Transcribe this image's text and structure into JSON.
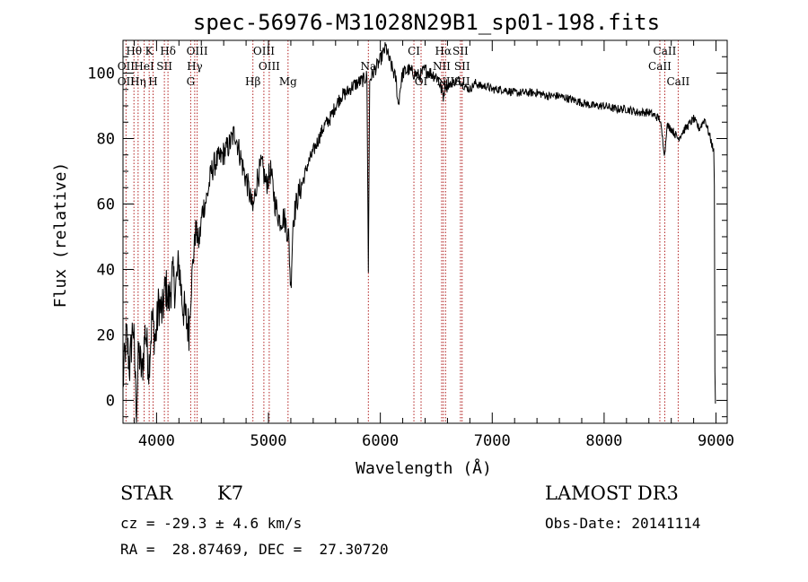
{
  "chart_data": {
    "type": "line",
    "title": "spec-56976-M31028N29B1_sp01-198.fits",
    "xlabel": "Wavelength (Å)",
    "ylabel": "Flux (relative)",
    "xlim": [
      3700,
      9100
    ],
    "ylim": [
      -7,
      110
    ],
    "x_ticks": [
      4000,
      5000,
      6000,
      7000,
      8000,
      9000
    ],
    "x_tick_labels": [
      "4000",
      "5000",
      "6000",
      "7000",
      "8000",
      "9000"
    ],
    "y_ticks": [
      0,
      20,
      40,
      60,
      80,
      100
    ],
    "y_tick_labels": [
      "0",
      "20",
      "40",
      "60",
      "80",
      "100"
    ],
    "spectrum_points": [
      [
        3700,
        5
      ],
      [
        3730,
        20
      ],
      [
        3760,
        10
      ],
      [
        3790,
        24
      ],
      [
        3820,
        -2
      ],
      [
        3840,
        15
      ],
      [
        3870,
        8
      ],
      [
        3900,
        22
      ],
      [
        3930,
        10
      ],
      [
        3960,
        25
      ],
      [
        3990,
        18
      ],
      [
        4020,
        30
      ],
      [
        4050,
        26
      ],
      [
        4080,
        35
      ],
      [
        4110,
        30
      ],
      [
        4140,
        38
      ],
      [
        4170,
        34
      ],
      [
        4200,
        42
      ],
      [
        4230,
        30
      ],
      [
        4260,
        25
      ],
      [
        4290,
        22
      ],
      [
        4320,
        40
      ],
      [
        4350,
        52
      ],
      [
        4380,
        48
      ],
      [
        4410,
        58
      ],
      [
        4450,
        62
      ],
      [
        4490,
        70
      ],
      [
        4530,
        73
      ],
      [
        4570,
        74
      ],
      [
        4610,
        76
      ],
      [
        4650,
        78
      ],
      [
        4700,
        82
      ],
      [
        4740,
        76
      ],
      [
        4780,
        70
      ],
      [
        4820,
        65
      ],
      [
        4860,
        58
      ],
      [
        4900,
        68
      ],
      [
        4940,
        72
      ],
      [
        4980,
        66
      ],
      [
        5020,
        70
      ],
      [
        5060,
        60
      ],
      [
        5100,
        55
      ],
      [
        5140,
        56
      ],
      [
        5180,
        50
      ],
      [
        5200,
        34
      ],
      [
        5220,
        55
      ],
      [
        5260,
        62
      ],
      [
        5300,
        66
      ],
      [
        5350,
        72
      ],
      [
        5400,
        76
      ],
      [
        5450,
        80
      ],
      [
        5500,
        84
      ],
      [
        5550,
        86
      ],
      [
        5600,
        90
      ],
      [
        5650,
        93
      ],
      [
        5700,
        94
      ],
      [
        5750,
        96
      ],
      [
        5800,
        97
      ],
      [
        5850,
        98
      ],
      [
        5880,
        99
      ],
      [
        5893,
        40
      ],
      [
        5905,
        98
      ],
      [
        5950,
        101
      ],
      [
        6000,
        104
      ],
      [
        6050,
        108
      ],
      [
        6080,
        104
      ],
      [
        6100,
        102
      ],
      [
        6120,
        100
      ],
      [
        6140,
        98
      ],
      [
        6160,
        90
      ],
      [
        6180,
        96
      ],
      [
        6200,
        100
      ],
      [
        6250,
        101
      ],
      [
        6300,
        100
      ],
      [
        6350,
        99
      ],
      [
        6400,
        101
      ],
      [
        6450,
        100
      ],
      [
        6500,
        99
      ],
      [
        6520,
        98
      ],
      [
        6563,
        93
      ],
      [
        6580,
        97
      ],
      [
        6600,
        96
      ],
      [
        6650,
        97
      ],
      [
        6700,
        98
      ],
      [
        6750,
        96
      ],
      [
        6800,
        95
      ],
      [
        6850,
        97
      ],
      [
        6900,
        96
      ],
      [
        6950,
        96
      ],
      [
        7000,
        95
      ],
      [
        7100,
        95
      ],
      [
        7200,
        94
      ],
      [
        7300,
        94
      ],
      [
        7400,
        94
      ],
      [
        7500,
        93
      ],
      [
        7600,
        93
      ],
      [
        7700,
        92
      ],
      [
        7800,
        91
      ],
      [
        7900,
        90
      ],
      [
        8000,
        90
      ],
      [
        8100,
        89
      ],
      [
        8200,
        89
      ],
      [
        8300,
        88
      ],
      [
        8400,
        88
      ],
      [
        8498,
        86
      ],
      [
        8542,
        75
      ],
      [
        8560,
        84
      ],
      [
        8600,
        83
      ],
      [
        8662,
        80
      ],
      [
        8700,
        82
      ],
      [
        8750,
        84
      ],
      [
        8800,
        86
      ],
      [
        8850,
        83
      ],
      [
        8900,
        86
      ],
      [
        8950,
        80
      ],
      [
        8980,
        76
      ],
      [
        8985,
        65
      ],
      [
        8990,
        10
      ],
      [
        8995,
        -1
      ]
    ],
    "reference_lines": [
      {
        "label": "Hθ",
        "wavelength": 3798,
        "row": 0
      },
      {
        "label": "OII",
        "wavelength": 3727,
        "row": 1
      },
      {
        "label": "OII",
        "wavelength": 3727,
        "row": 2
      },
      {
        "label": "HeI",
        "wavelength": 3889,
        "row": 1
      },
      {
        "label": "Hη",
        "wavelength": 3835,
        "row": 2
      },
      {
        "label": "K",
        "wavelength": 3934,
        "row": 0
      },
      {
        "label": "H",
        "wavelength": 3969,
        "row": 2
      },
      {
        "label": "SII",
        "wavelength": 4070,
        "row": 1
      },
      {
        "label": "Hδ",
        "wavelength": 4102,
        "row": 0
      },
      {
        "label": "OIII",
        "wavelength": 4363,
        "row": 0
      },
      {
        "label": "Hγ",
        "wavelength": 4341,
        "row": 1
      },
      {
        "label": "G",
        "wavelength": 4305,
        "row": 2
      },
      {
        "label": "Hβ",
        "wavelength": 4861,
        "row": 2
      },
      {
        "label": "OIII",
        "wavelength": 4959,
        "row": 0
      },
      {
        "label": "OIII",
        "wavelength": 5007,
        "row": 1
      },
      {
        "label": "Mg",
        "wavelength": 5175,
        "row": 2
      },
      {
        "label": "Na",
        "wavelength": 5893,
        "row": 1
      },
      {
        "label": "CI",
        "wavelength": 6300,
        "row": 0
      },
      {
        "label": "OI",
        "wavelength": 6364,
        "row": 2
      },
      {
        "label": "Hα",
        "wavelength": 6563,
        "row": 0
      },
      {
        "label": "NII",
        "wavelength": 6548,
        "row": 1
      },
      {
        "label": "NII",
        "wavelength": 6583,
        "row": 2
      },
      {
        "label": "SII",
        "wavelength": 6716,
        "row": 0
      },
      {
        "label": "SII",
        "wavelength": 6731,
        "row": 1
      },
      {
        "label": "SII",
        "wavelength": 6731,
        "row": 2
      },
      {
        "label": "CaII",
        "wavelength": 8542,
        "row": 0
      },
      {
        "label": "CaII",
        "wavelength": 8498,
        "row": 1
      },
      {
        "label": "CaII",
        "wavelength": 8662,
        "row": 2
      }
    ]
  },
  "info": {
    "class_label": "STAR",
    "subclass_label": "K7",
    "survey_label": "LAMOST DR3",
    "redshift_text": "cz = -29.3 ± 4.6 km/s",
    "obs_date_text": "Obs-Date: 20141114",
    "coords_text": "RA =  28.87469, DEC =  27.30720"
  },
  "colors": {
    "spectrum": "#000000",
    "reference_line": "#b22222",
    "axes": "#000000"
  }
}
